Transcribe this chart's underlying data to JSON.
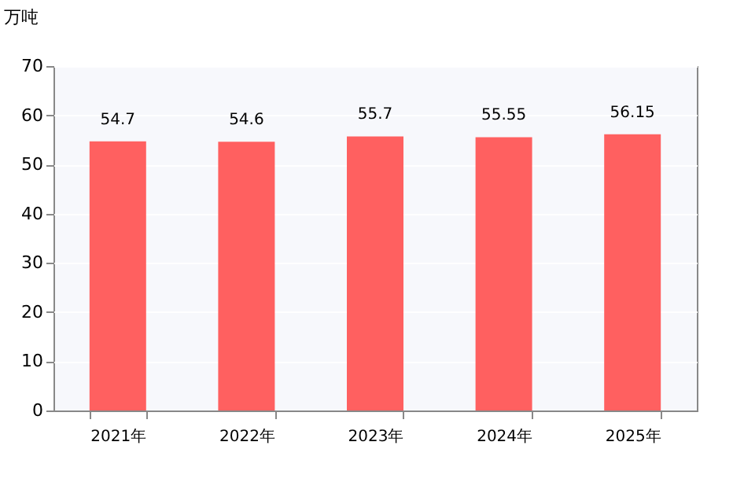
{
  "chart_data": {
    "type": "bar",
    "ylabel": "万吨",
    "categories": [
      "2021年",
      "2022年",
      "2023年",
      "2024年",
      "2025年"
    ],
    "values": [
      54.7,
      54.6,
      55.7,
      55.55,
      56.15
    ],
    "color": "#ff6060",
    "ylim": [
      0,
      70
    ],
    "yticks": [
      0,
      10,
      20,
      30,
      40,
      50,
      60,
      70
    ],
    "grid": "y",
    "data_labels": true
  }
}
